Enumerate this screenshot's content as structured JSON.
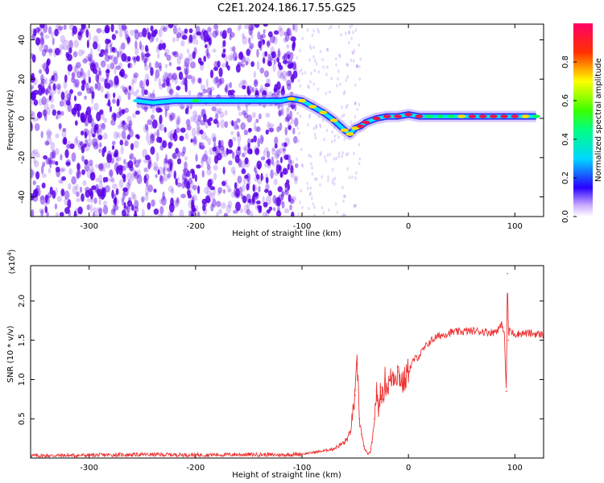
{
  "figure_title": "C2E1.2024.186.17.55.G25",
  "colors": {
    "ridge_peak": "#e6194b",
    "ridge_mid": "#00e5ff",
    "ridge_low": "#2020ff",
    "scatter": "#5b00e6",
    "snr_line": "#ee3333"
  },
  "chart_data": [
    {
      "type": "heatmap",
      "title": "",
      "xlabel": "Height of straight line (km)",
      "ylabel": "Frequency (Hz)",
      "xlim": [
        -355,
        127
      ],
      "ylim": [
        -50,
        48
      ],
      "xticks": [
        -300,
        -200,
        -100,
        0,
        100
      ],
      "yticks": [
        -40,
        -20,
        0,
        20,
        40
      ],
      "colorbar": {
        "label": "Normalized spectral amplitude",
        "range": [
          0,
          1
        ],
        "ticks": [
          0.0,
          0.2,
          0.4,
          0.6,
          0.8
        ]
      },
      "ridge": {
        "x": [
          -255,
          -240,
          -220,
          -200,
          -180,
          -160,
          -140,
          -120,
          -110,
          -100,
          -90,
          -80,
          -70,
          -60,
          -55,
          -50,
          -45,
          -40,
          -30,
          -20,
          -10,
          0,
          10,
          20,
          30,
          40,
          50,
          60,
          70,
          80,
          90,
          100,
          110,
          120
        ],
        "y": [
          9,
          8,
          9,
          9,
          9,
          9,
          9,
          9,
          10,
          9,
          6,
          3,
          -1,
          -6,
          -8,
          -5,
          -4,
          -2,
          0,
          1,
          1,
          2,
          1,
          1,
          1,
          1,
          1,
          1,
          1,
          1,
          1,
          1,
          1,
          1
        ],
        "amplitude": [
          0.45,
          0.4,
          0.45,
          0.5,
          0.35,
          0.45,
          0.45,
          0.45,
          0.6,
          0.6,
          0.6,
          0.7,
          0.6,
          0.6,
          0.7,
          0.75,
          0.8,
          0.85,
          0.85,
          0.85,
          0.85,
          0.9,
          0.85,
          0.55,
          0.55,
          0.55,
          0.7,
          0.85,
          0.9,
          0.9,
          0.9,
          0.8,
          0.6,
          0.55
        ]
      }
    },
    {
      "type": "line",
      "title": "",
      "xlabel": "Height of straight line (km)",
      "ylabel": "SNR (10 * v/v)",
      "scale_label": "(x10",
      "scale_exp": "4",
      "scale_close": ")",
      "xlim": [
        -355,
        127
      ],
      "ylim": [
        0,
        24500
      ],
      "xticks": [
        -300,
        -200,
        -100,
        0,
        100
      ],
      "yticks": [
        5000,
        10000,
        15000,
        20000
      ],
      "ytick_labels": [
        "0.5",
        "1.0",
        "1.5",
        "2.0"
      ],
      "series": [
        {
          "x": [
            -355,
            -300,
            -250,
            -200,
            -150,
            -120,
            -100,
            -90,
            -80,
            -70,
            -60,
            -55,
            -50,
            -48,
            -46,
            -44,
            -42,
            -40,
            -38,
            -36,
            -34,
            -32,
            -30,
            -28,
            -26,
            -24,
            -22,
            -20,
            -15,
            -10,
            -5,
            0,
            5,
            10,
            15,
            20,
            25,
            30,
            35,
            40,
            50,
            60,
            70,
            80,
            85,
            88,
            90,
            92,
            93,
            94,
            95,
            97,
            100,
            110,
            120,
            127
          ],
          "y": [
            300,
            350,
            450,
            400,
            450,
            400,
            500,
            700,
            900,
            1200,
            2000,
            3000,
            8000,
            12000,
            5000,
            3000,
            1500,
            900,
            500,
            700,
            2000,
            5000,
            8500,
            6000,
            9000,
            7500,
            10000,
            9000,
            10500,
            11000,
            9500,
            11000,
            12500,
            13000,
            14000,
            14800,
            15300,
            15600,
            15800,
            16000,
            16100,
            16200,
            16100,
            16000,
            16500,
            17000,
            16000,
            8500,
            23500,
            15000,
            16500,
            16000,
            15800,
            15900,
            15800,
            15700
          ]
        }
      ]
    }
  ]
}
